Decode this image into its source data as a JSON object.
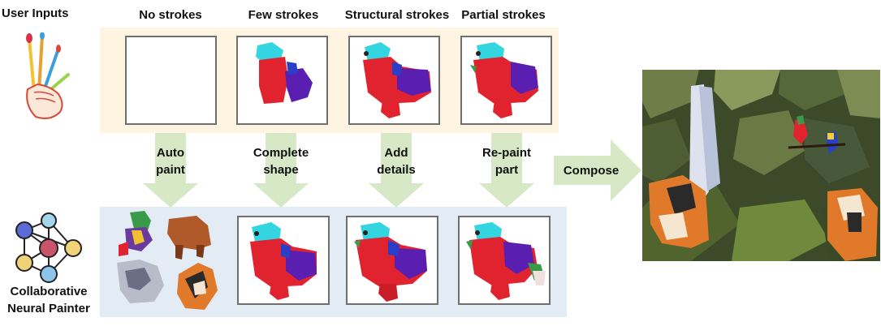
{
  "user_inputs_label": "User Inputs",
  "painter_label_line1": "Collaborative",
  "painter_label_line2": "Neural Painter",
  "columns": [
    {
      "header": "No strokes",
      "action_line1": "Auto",
      "action_line2": "paint"
    },
    {
      "header": "Few strokes",
      "action_line1": "Complete",
      "action_line2": "shape"
    },
    {
      "header": "Structural strokes",
      "action_line1": "Add",
      "action_line2": "details"
    },
    {
      "header": "Partial strokes",
      "action_line1": "Re-paint",
      "action_line2": "part"
    }
  ],
  "compose_label": "Compose",
  "colors": {
    "top_band": "#fdf5e2",
    "bottom_band": "#e3ebf5",
    "arrow": "#d6e8c6",
    "bird_red": "#e0232e",
    "bird_cyan": "#33d6e0",
    "bird_purple": "#5a1fb0",
    "bird_blue": "#2a3fc8"
  }
}
